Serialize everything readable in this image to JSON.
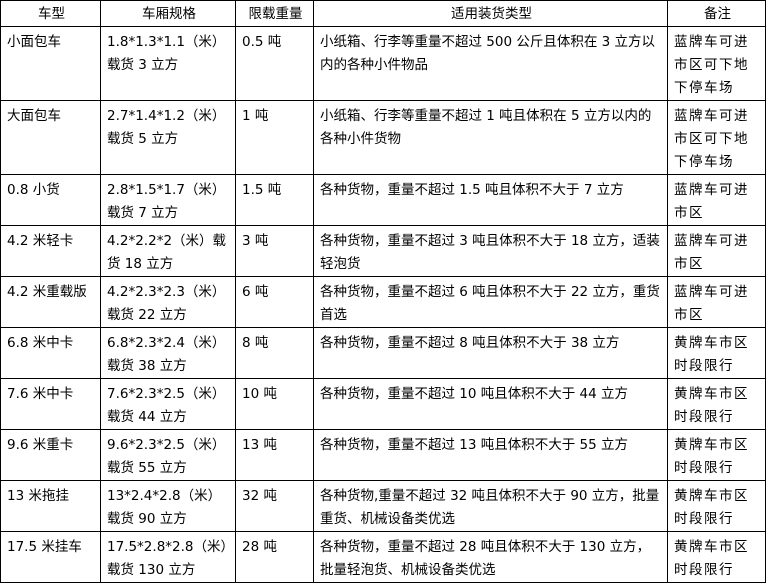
{
  "table": {
    "header": [
      "车型",
      "车厢规格",
      "限载重量",
      "适用装货类型",
      "备注"
    ],
    "rows": [
      [
        "小面包车",
        "1.8*1.3*1.1（米）载货 3 立方",
        "0.5 吨",
        "小纸箱、行李等重量不超过 500 公斤且体积在 3 立方以内的各种小件物品",
        "蓝牌车可进市区可下地下停车场"
      ],
      [
        "大面包车",
        "2.7*1.4*1.2（米）载货 5 立方",
        "1 吨",
        "小纸箱、行李等重量不超过 1 吨且体积在 5 立方以内的各种小件货物",
        "蓝牌车可进市区可下地下停车场"
      ],
      [
        "0.8 小货",
        "2.8*1.5*1.7（米）载货 7 立方",
        "1.5 吨",
        "各种货物，重量不超过 1.5 吨且体积不大于 7 立方",
        "蓝牌车可进市区"
      ],
      [
        "4.2 米轻卡",
        "4.2*2.2*2（米）载货 18 立方",
        "3 吨",
        "各种货物，重量不超过 3 吨且体积不大于 18 立方，适装轻泡货",
        "蓝牌车可进市区"
      ],
      [
        "4.2 米重载版",
        "4.2*2.3*2.3（米）载货 22 立方",
        "6 吨",
        "各种货物，重量不超过 6 吨且体积不大于 22 立方，重货首选",
        "蓝牌车可进市区"
      ],
      [
        "6.8 米中卡",
        "6.8*2.3*2.4（米）载货 38 立方",
        "8 吨",
        "各种货物，重量不超过 8 吨且体积不大于 38 立方",
        "黄牌车市区时段限行"
      ],
      [
        "7.6 米中卡",
        "7.6*2.3*2.5（米）载货 44 立方",
        "10 吨",
        "各种货物，重量不超过 10 吨且体积不大于 44 立方",
        "黄牌车市区时段限行"
      ],
      [
        "9.6 米重卡",
        "9.6*2.3*2.5（米）载货 55 立方",
        "13 吨",
        "各种货物，重量不超过 13 吨且体积不大于 55 立方",
        "黄牌车市区时段限行"
      ],
      [
        "13 米拖挂",
        "13*2.4*2.8（米）载货 90 立方",
        "32 吨",
        "各种货物,重量不超过 32 吨且体积不大于 90 立方，批量重货、机械设备类优选",
        "黄牌车市区时段限行"
      ],
      [
        "17.5 米挂车",
        "17.5*2.8*2.8（米）载货 130 立方",
        "28 吨",
        "各种货物，重量不超过 28 吨且体积不大于 130 立方，批量轻泡货、机械设备类优选",
        "黄牌车市区时段限行"
      ]
    ]
  }
}
